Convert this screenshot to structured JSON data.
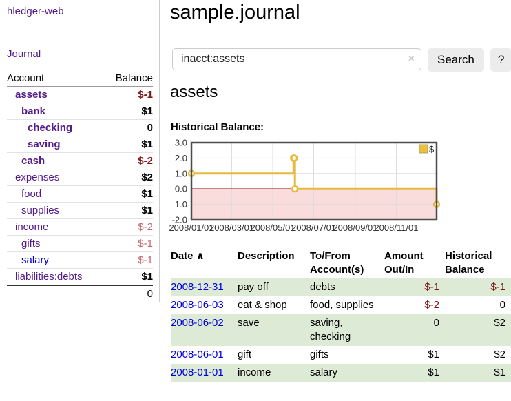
{
  "app": {
    "brand": "hledger-web",
    "nav_journal": "Journal"
  },
  "sidebar": {
    "header": {
      "account": "Account",
      "balance": "Balance"
    },
    "accounts": [
      {
        "name": "assets",
        "balance": "$-1"
      },
      {
        "name": "bank",
        "balance": "$1"
      },
      {
        "name": "checking",
        "balance": "0"
      },
      {
        "name": "saving",
        "balance": "$1"
      },
      {
        "name": "cash",
        "balance": "$-2"
      },
      {
        "name": "expenses",
        "balance": "$2"
      },
      {
        "name": "food",
        "balance": "$1"
      },
      {
        "name": "supplies",
        "balance": "$1"
      },
      {
        "name": "income",
        "balance": "$-2"
      },
      {
        "name": "gifts",
        "balance": "$-1"
      },
      {
        "name": "salary",
        "balance": "$-1"
      },
      {
        "name": "liabilities:debts",
        "balance": "$1"
      }
    ],
    "total": "0"
  },
  "header": {
    "title": "sample.journal"
  },
  "search": {
    "query": "inacct:assets",
    "clear_icon": "×",
    "button": "Search",
    "help_button": "?"
  },
  "account_page": {
    "title": "assets",
    "chart_label": "Historical Balance:"
  },
  "chart_data": {
    "type": "line",
    "step": true,
    "title": "Historical Balance",
    "xlabel": "",
    "ylabel": "",
    "xlim": [
      "2008-01-01",
      "2008-12-31"
    ],
    "ylim": [
      -2,
      3
    ],
    "grid": true,
    "legend_position": "top-right",
    "y_ticks": [
      "3.0",
      "2.0",
      "1.0",
      "0.0",
      "-1.0",
      "-2.0"
    ],
    "x_ticks": [
      {
        "date": "2008-01-01",
        "label": "2008/01/01"
      },
      {
        "date": "2008-03-01",
        "label": "2008/03/01"
      },
      {
        "date": "2008-05-01",
        "label": "2008/05/01"
      },
      {
        "date": "2008-07-01",
        "label": "2008/07/01"
      },
      {
        "date": "2008-09-01",
        "label": "2008/09/01"
      },
      {
        "date": "2008-11-01",
        "label": "2008/11/01"
      }
    ],
    "series": [
      {
        "name": "$",
        "points": [
          {
            "date": "2008-01-01",
            "value": 1
          },
          {
            "date": "2008-06-01",
            "value": 2
          },
          {
            "date": "2008-06-02",
            "value": 2
          },
          {
            "date": "2008-06-03",
            "value": 0
          },
          {
            "date": "2008-12-31",
            "value": -1
          }
        ]
      }
    ],
    "colors": {
      "line": "#e6b93f",
      "negative_fill": "#fbdcdc",
      "zero_line": "#8b0000",
      "legend_fill": "#ecc23d",
      "grid": "#dddddd",
      "border": "#4d4d4d"
    }
  },
  "register": {
    "sort_icon": "∧",
    "headers": {
      "date": "Date",
      "description": "Description",
      "accounts": "To/From Account(s)",
      "amount": "Amount Out/In",
      "balance": "Historical Balance"
    },
    "rows": [
      {
        "date": "2008-12-31",
        "description": "pay off",
        "accounts": "debts",
        "amount": "$-1",
        "balance": "$-1"
      },
      {
        "date": "2008-06-03",
        "description": "eat & shop",
        "accounts": "food, supplies",
        "amount": "$-2",
        "balance": "0"
      },
      {
        "date": "2008-06-02",
        "description": "save",
        "accounts": "saving, checking",
        "amount": "0",
        "balance": "$2"
      },
      {
        "date": "2008-06-01",
        "description": "gift",
        "accounts": "gifts",
        "amount": "$1",
        "balance": "$2"
      },
      {
        "date": "2008-01-01",
        "description": "income",
        "accounts": "salary",
        "amount": "$1",
        "balance": "$1"
      }
    ]
  },
  "colors": {
    "link_purple": "#551a8b",
    "link_blue": "#0000dd",
    "negative_strong": "#801515",
    "negative_muted": "#c4696f",
    "row_green": "#dcead6",
    "button_bg": "#ececec"
  }
}
